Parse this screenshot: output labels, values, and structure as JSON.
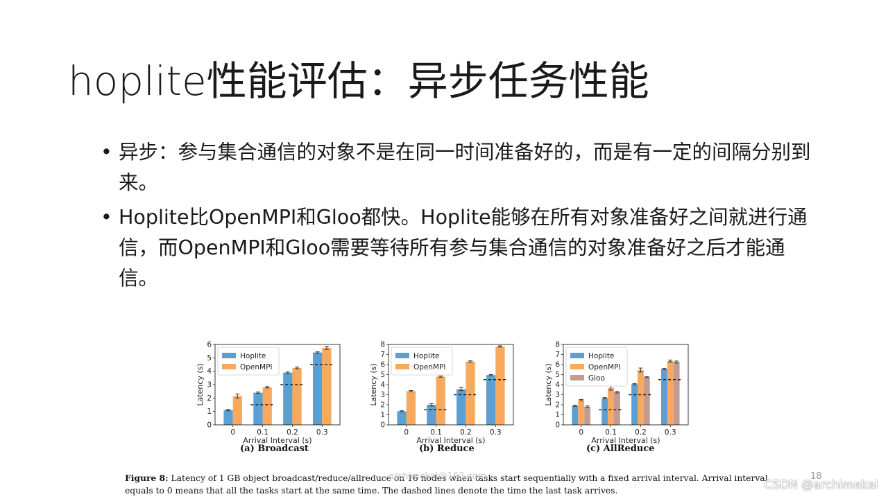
{
  "slide": {
    "title": "hoplite性能评估：异步任务性能",
    "bullets": [
      {
        "dot": "•",
        "text": "异步：参与集合通信的对象不是在同一时间准备好的，而是有一定的间隔分别到来。"
      },
      {
        "dot": "•",
        "text": "Hoplite比OpenMPI和Gloo都快。Hoplite能够在所有对象准备好之间就进行通信，而OpenMPI和Gloo需要等待所有参与集合通信的对象准备好之后才能通信。"
      }
    ],
    "caption": {
      "label": "Figure 8:",
      "text": "Latency of 1 GB object broadcast/reduce/allreduce on 16 nodes when tasks start sequentially with a fixed arrival interval. Arrival interval equals to 0 means that all the tasks start at the same time. The dashed lines denote the time the last task arrives."
    },
    "watermark": "archimekai@163.com",
    "page_number": "18",
    "csdn_mark": "CSDN @archimekai"
  },
  "colors": {
    "Hoplite": "#5b9fd3",
    "OpenMPI": "#f7a95e",
    "Gloo": "#c29b93",
    "text": "#1a1a1a"
  },
  "chart_data": [
    {
      "type": "bar",
      "subcaption": "(a) Broadcast",
      "xlabel": "Arrival Interval (s)",
      "ylabel": "Latency (s)",
      "ylim": [
        0,
        6
      ],
      "yticks": [
        0,
        1,
        2,
        3,
        4,
        5,
        6
      ],
      "categories": [
        "0",
        "0.1",
        "0.2",
        "0.3"
      ],
      "series": [
        {
          "name": "Hoplite",
          "values": [
            1.1,
            2.4,
            3.9,
            5.4
          ],
          "errors": [
            0.05,
            0.05,
            0.05,
            0.05
          ]
        },
        {
          "name": "OpenMPI",
          "values": [
            2.15,
            2.8,
            4.25,
            5.75
          ],
          "errors": [
            0.15,
            0.05,
            0.06,
            0.12
          ]
        }
      ],
      "dashed": [
        null,
        1.5,
        3.0,
        4.5
      ],
      "legend": "top-left"
    },
    {
      "type": "bar",
      "subcaption": "(b) Reduce",
      "xlabel": "Arrival Interval (s)",
      "ylabel": "Latency (s)",
      "ylim": [
        0,
        8
      ],
      "yticks": [
        0,
        1,
        2,
        3,
        4,
        5,
        6,
        7,
        8
      ],
      "categories": [
        "0",
        "0.1",
        "0.2",
        "0.3"
      ],
      "series": [
        {
          "name": "Hoplite",
          "values": [
            1.35,
            2.0,
            3.55,
            4.95
          ],
          "errors": [
            0.05,
            0.12,
            0.15,
            0.05
          ]
        },
        {
          "name": "OpenMPI",
          "values": [
            3.35,
            4.8,
            6.3,
            7.8
          ],
          "errors": [
            0.06,
            0.06,
            0.07,
            0.06
          ]
        }
      ],
      "dashed": [
        null,
        1.5,
        3.0,
        4.5
      ],
      "legend": "top-left"
    },
    {
      "type": "bar",
      "subcaption": "(c) AllReduce",
      "xlabel": "Arrival Interval (s)",
      "ylabel": "Latency (s)",
      "ylim": [
        0,
        8
      ],
      "yticks": [
        0,
        1,
        2,
        3,
        4,
        5,
        6,
        7,
        8
      ],
      "categories": [
        "0",
        "0.1",
        "0.2",
        "0.3"
      ],
      "series": [
        {
          "name": "Hoplite",
          "values": [
            1.9,
            2.65,
            4.05,
            5.55
          ],
          "errors": [
            0.05,
            0.06,
            0.06,
            0.06
          ]
        },
        {
          "name": "OpenMPI",
          "values": [
            2.45,
            3.7,
            5.45,
            6.35
          ],
          "errors": [
            0.07,
            0.25,
            0.2,
            0.1
          ]
        },
        {
          "name": "Gloo",
          "values": [
            1.8,
            3.25,
            4.75,
            6.25
          ],
          "errors": [
            0.08,
            0.08,
            0.05,
            0.1
          ]
        }
      ],
      "dashed": [
        null,
        1.5,
        3.0,
        4.5
      ],
      "legend": "top-left"
    }
  ]
}
